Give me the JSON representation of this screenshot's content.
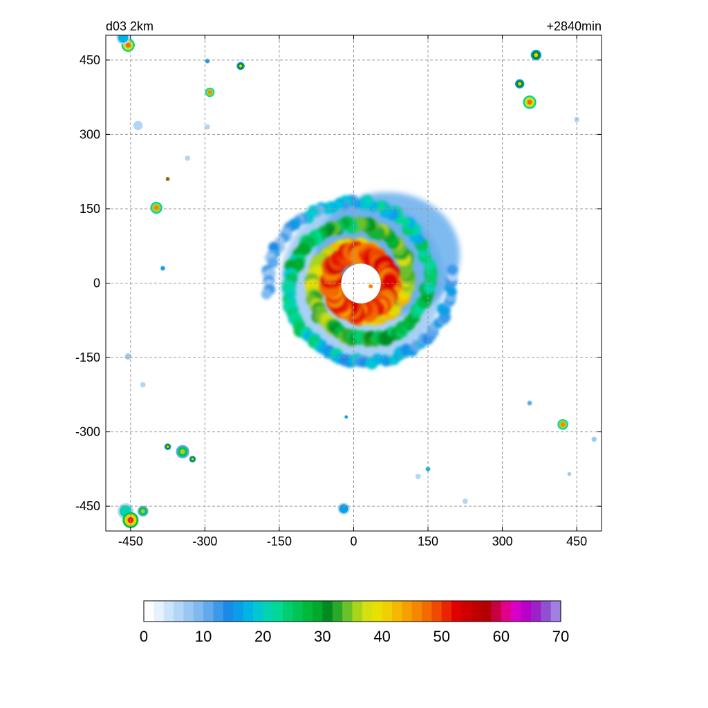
{
  "header": {
    "left_label": "d03 2km",
    "right_label": "+2840min"
  },
  "chart_data": {
    "type": "heatmap",
    "title": "",
    "xlabel": "",
    "ylabel": "",
    "xlim": [
      -500,
      500
    ],
    "ylim": [
      -500,
      500
    ],
    "x_ticks": [
      -450,
      -300,
      -150,
      0,
      150,
      300,
      450
    ],
    "y_ticks": [
      -450,
      -300,
      -150,
      0,
      150,
      300,
      450
    ],
    "grid": true,
    "colorbar": {
      "range": [
        0,
        70
      ],
      "ticks": [
        0,
        10,
        20,
        30,
        40,
        50,
        60,
        70
      ],
      "colors": [
        "#ffffff",
        "#e6f2ff",
        "#cce4fb",
        "#b3d6f6",
        "#99c7f2",
        "#7fb9ee",
        "#5fa9ec",
        "#3b99ea",
        "#1a8ae8",
        "#0b9ee8",
        "#00b4e6",
        "#00c8d2",
        "#00d4b0",
        "#00d894",
        "#00cf70",
        "#00c454",
        "#00b83a",
        "#00a82c",
        "#008a20",
        "#2aa82a",
        "#6cc02a",
        "#a8d41a",
        "#d4e010",
        "#e8e000",
        "#f0d000",
        "#f5b800",
        "#f5a000",
        "#f58600",
        "#f26a00",
        "#ef4a00",
        "#ea2400",
        "#e00000",
        "#d00000",
        "#c00000",
        "#b40000",
        "#c80040",
        "#e0008c",
        "#d800c8",
        "#b800c8",
        "#a020c8",
        "#9050d0",
        "#a080e0"
      ]
    },
    "storm": {
      "center": [
        12,
        2
      ],
      "eye_radius": 40,
      "description_values": "reflectivity field, max ~55"
    },
    "cells": [
      {
        "x": -455,
        "y": 480,
        "r": 10,
        "v": 48
      },
      {
        "x": -465,
        "y": 495,
        "r": 10,
        "v": 28
      },
      {
        "x": -295,
        "y": 448,
        "r": 4,
        "v": 25
      },
      {
        "x": -228,
        "y": 438,
        "r": 6,
        "v": 40
      },
      {
        "x": -290,
        "y": 385,
        "r": 7,
        "v": 45
      },
      {
        "x": -435,
        "y": 318,
        "r": 7,
        "v": 12
      },
      {
        "x": -295,
        "y": 315,
        "r": 4,
        "v": 12
      },
      {
        "x": -335,
        "y": 252,
        "r": 4,
        "v": 12
      },
      {
        "x": -375,
        "y": 210,
        "r": 3,
        "v": 55
      },
      {
        "x": -398,
        "y": 152,
        "r": 9,
        "v": 45
      },
      {
        "x": -385,
        "y": 30,
        "r": 4,
        "v": 25
      },
      {
        "x": -455,
        "y": -148,
        "r": 5,
        "v": 18
      },
      {
        "x": -425,
        "y": -205,
        "r": 4,
        "v": 10
      },
      {
        "x": -375,
        "y": -330,
        "r": 5,
        "v": 40
      },
      {
        "x": -345,
        "y": -340,
        "r": 10,
        "v": 35
      },
      {
        "x": -325,
        "y": -355,
        "r": 5,
        "v": 40
      },
      {
        "x": -460,
        "y": -460,
        "r": 12,
        "v": 30
      },
      {
        "x": -450,
        "y": -478,
        "r": 12,
        "v": 50
      },
      {
        "x": -425,
        "y": -460,
        "r": 8,
        "v": 35
      },
      {
        "x": -20,
        "y": -455,
        "r": 9,
        "v": 25
      },
      {
        "x": -15,
        "y": -270,
        "r": 3,
        "v": 25
      },
      {
        "x": 150,
        "y": -375,
        "r": 4,
        "v": 28
      },
      {
        "x": 130,
        "y": -390,
        "r": 4,
        "v": 12
      },
      {
        "x": 225,
        "y": -440,
        "r": 4,
        "v": 15
      },
      {
        "x": 355,
        "y": -242,
        "r": 4,
        "v": 20
      },
      {
        "x": 422,
        "y": -285,
        "r": 8,
        "v": 45
      },
      {
        "x": 485,
        "y": -315,
        "r": 4,
        "v": 18
      },
      {
        "x": 435,
        "y": -385,
        "r": 3,
        "v": 18
      },
      {
        "x": 368,
        "y": 460,
        "r": 8,
        "v": 40
      },
      {
        "x": 335,
        "y": 402,
        "r": 7,
        "v": 40
      },
      {
        "x": 355,
        "y": 365,
        "r": 10,
        "v": 48
      },
      {
        "x": 450,
        "y": 330,
        "r": 4,
        "v": 10
      }
    ]
  }
}
